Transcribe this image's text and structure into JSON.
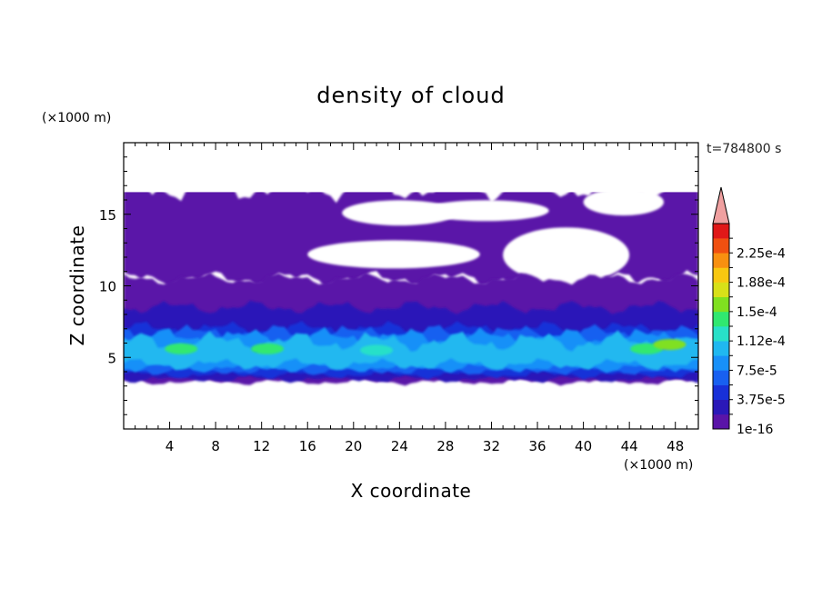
{
  "chart_data": {
    "type": "heatmap",
    "title": "density of cloud",
    "xlabel": "X coordinate",
    "ylabel": "Z coordinate",
    "x_unit": "(×1000 m)",
    "y_unit": "(×1000 m)",
    "time_label": "t=784800 s",
    "xlim": [
      0,
      50
    ],
    "ylim": [
      0,
      20
    ],
    "x_ticks": [
      4,
      8,
      12,
      16,
      20,
      24,
      28,
      32,
      36,
      40,
      44,
      48
    ],
    "y_ticks": [
      5,
      10,
      15
    ],
    "colorbar": {
      "labels": [
        "2.25e-4",
        "1.88e-4",
        "1.5e-4",
        "1.12e-4",
        "7.5e-5",
        "3.75e-5",
        "1e-16"
      ],
      "level_colors": [
        "#5a14a8",
        "#2a18b8",
        "#1830d8",
        "#1860f0",
        "#1890f8",
        "#20b8f0",
        "#28e0c8",
        "#30e870",
        "#80e020",
        "#d8e018",
        "#f8c810",
        "#f89010",
        "#f05010",
        "#e01818"
      ],
      "extend_color": "#f0a0a0"
    },
    "bands": [
      {
        "level": 1,
        "z_bottom": 3.3,
        "z_top": 10.5
      },
      {
        "level": 2,
        "z_bottom": 3.5,
        "z_top": 8.5
      },
      {
        "level": 3,
        "z_bottom": 3.8,
        "z_top": 7.0
      },
      {
        "level": 4,
        "z_bottom": 4.1,
        "z_top": 6.7
      },
      {
        "level": 5,
        "z_bottom": 4.3,
        "z_top": 6.4
      },
      {
        "level": 6,
        "z_bottom": 4.5,
        "z_top": 6.1
      }
    ],
    "upper_layer": {
      "level": 1,
      "z_bottom": 10.5,
      "z_top": 16.8
    },
    "hotspots": [
      {
        "x": 5,
        "z": 5.6,
        "level": 8
      },
      {
        "x": 12.5,
        "z": 5.6,
        "level": 8
      },
      {
        "x": 22,
        "z": 5.5,
        "level": 7
      },
      {
        "x": 45.5,
        "z": 5.6,
        "level": 8
      },
      {
        "x": 47.5,
        "z": 5.9,
        "level": 9
      }
    ]
  }
}
